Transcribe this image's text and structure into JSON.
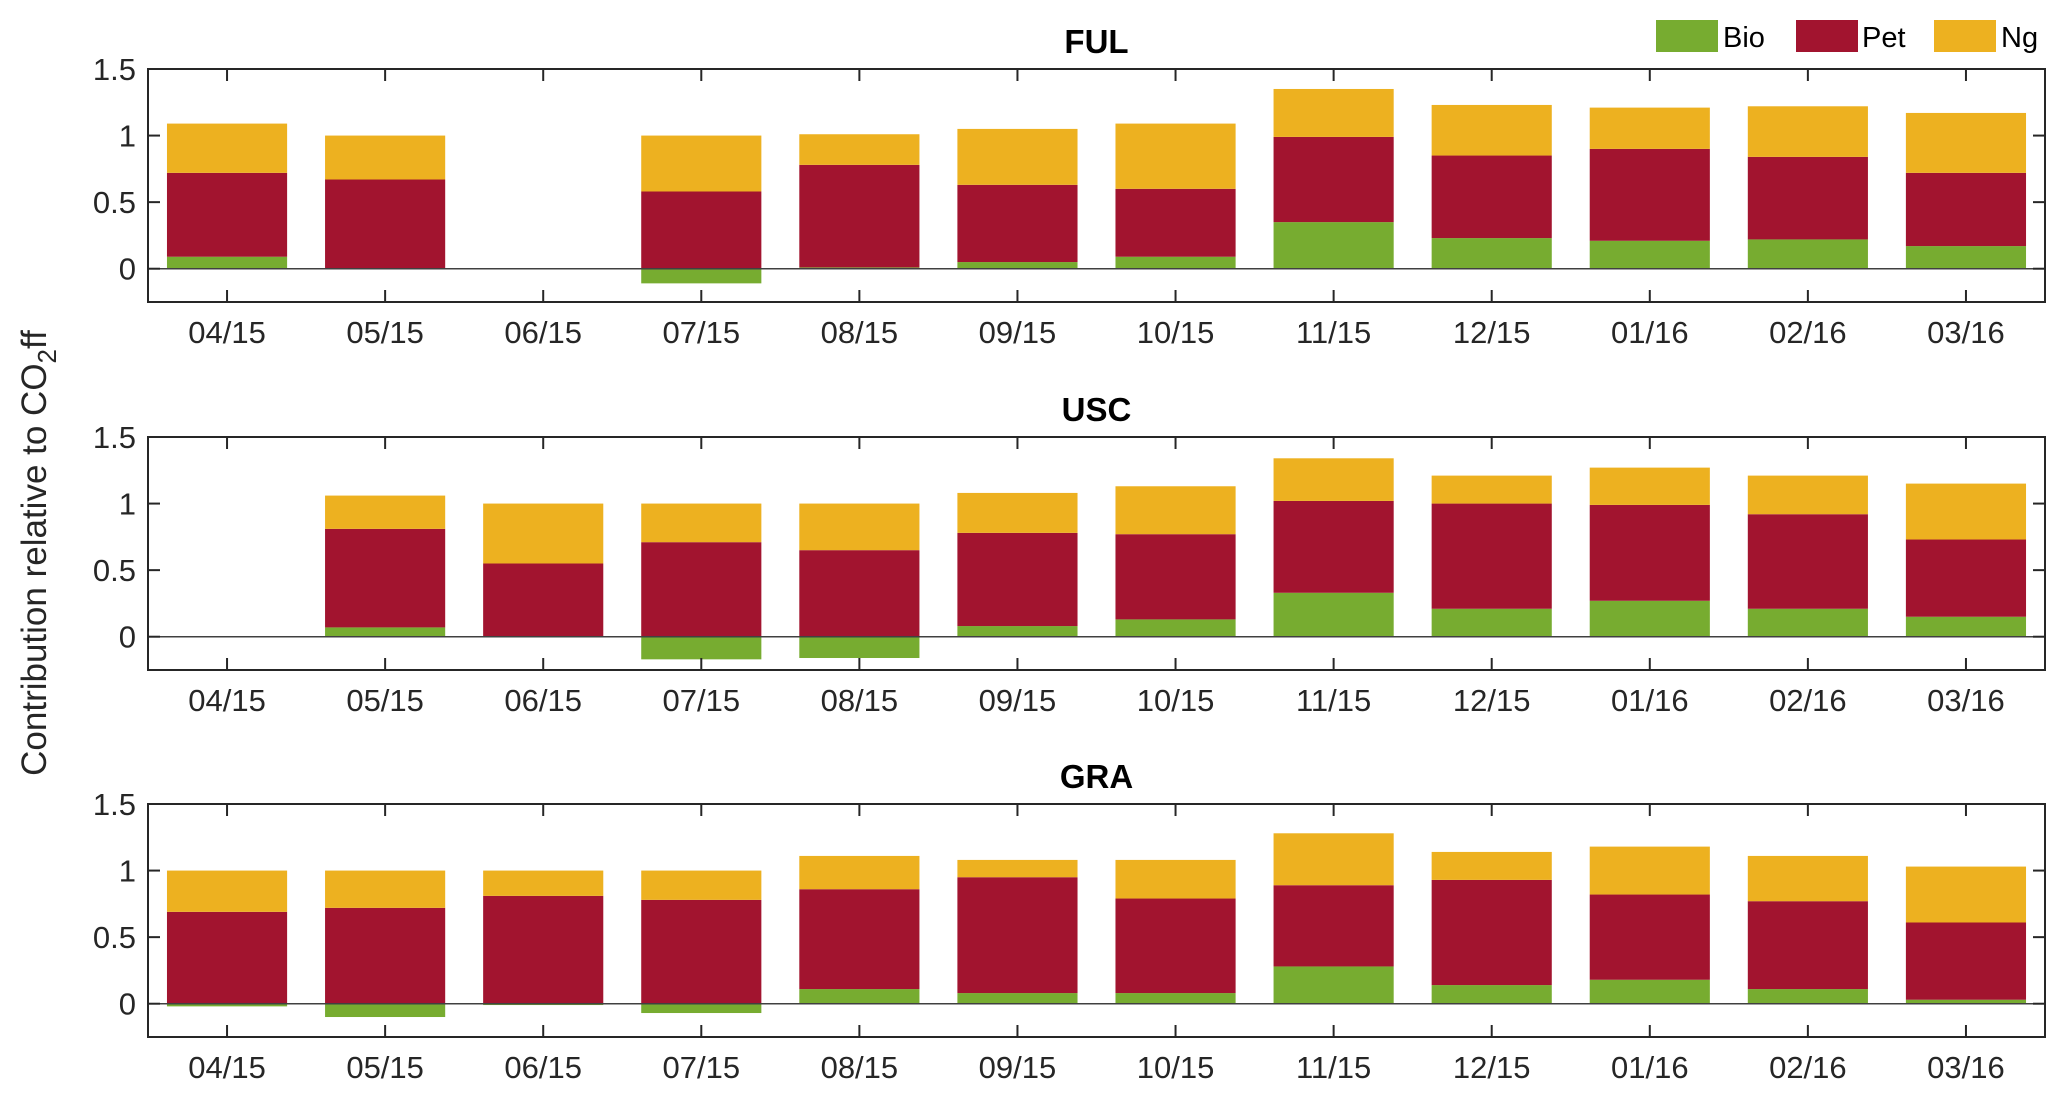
{
  "chart_data": {
    "type": "bar",
    "stacked": true,
    "ylabel": {
      "prefix": "Contribution relative to CO",
      "subscript": "2",
      "suffix": "ff"
    },
    "categories": [
      "04/15",
      "05/15",
      "06/15",
      "07/15",
      "08/15",
      "09/15",
      "10/15",
      "11/15",
      "12/15",
      "01/16",
      "02/16",
      "03/16"
    ],
    "ylim": [
      -0.25,
      1.5
    ],
    "yticks": [
      0,
      0.5,
      1,
      1.5
    ],
    "ytick_labels": [
      "0",
      "0.5",
      "1",
      "1.5"
    ],
    "grid": false,
    "legend": {
      "placement": "top-right",
      "entries": [
        {
          "name": "Bio",
          "color": "#77AC30"
        },
        {
          "name": "Pet",
          "color": "#A2142F"
        },
        {
          "name": "Ng",
          "color": "#EDB120"
        }
      ]
    },
    "panels": [
      {
        "title": "FUL",
        "series": [
          {
            "name": "Bio",
            "values": [
              0.09,
              0,
              null,
              -0.11,
              0.01,
              0.05,
              0.09,
              0.35,
              0.23,
              0.21,
              0.22,
              0.17
            ]
          },
          {
            "name": "Pet",
            "values": [
              0.63,
              0.67,
              null,
              0.58,
              0.77,
              0.58,
              0.51,
              0.64,
              0.62,
              0.69,
              0.62,
              0.55
            ]
          },
          {
            "name": "Ng",
            "values": [
              0.37,
              0.33,
              null,
              0.42,
              0.23,
              0.42,
              0.49,
              0.36,
              0.38,
              0.31,
              0.38,
              0.45
            ]
          }
        ]
      },
      {
        "title": "USC",
        "series": [
          {
            "name": "Bio",
            "values": [
              null,
              0.07,
              0,
              -0.17,
              -0.16,
              0.08,
              0.13,
              0.33,
              0.21,
              0.27,
              0.21,
              0.15
            ]
          },
          {
            "name": "Pet",
            "values": [
              null,
              0.74,
              0.55,
              0.71,
              0.65,
              0.7,
              0.64,
              0.69,
              0.79,
              0.72,
              0.71,
              0.58
            ]
          },
          {
            "name": "Ng",
            "values": [
              null,
              0.25,
              0.45,
              0.29,
              0.35,
              0.3,
              0.36,
              0.32,
              0.21,
              0.28,
              0.29,
              0.42
            ]
          }
        ]
      },
      {
        "title": "GRA",
        "series": [
          {
            "name": "Bio",
            "values": [
              -0.02,
              -0.1,
              -0.01,
              -0.07,
              0.11,
              0.08,
              0.08,
              0.28,
              0.14,
              0.18,
              0.11,
              0.03
            ]
          },
          {
            "name": "Pet",
            "values": [
              0.69,
              0.72,
              0.81,
              0.78,
              0.75,
              0.87,
              0.71,
              0.61,
              0.79,
              0.64,
              0.66,
              0.58
            ]
          },
          {
            "name": "Ng",
            "values": [
              0.31,
              0.28,
              0.19,
              0.22,
              0.25,
              0.13,
              0.29,
              0.39,
              0.21,
              0.36,
              0.34,
              0.42
            ]
          }
        ]
      }
    ]
  }
}
